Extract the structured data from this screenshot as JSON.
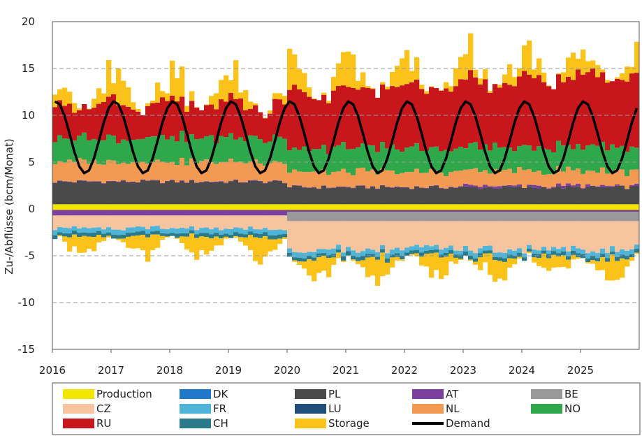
{
  "chart_data": {
    "type": "area",
    "title": "",
    "ylabel": "Zu-/Abflüsse (bcm/Monat)",
    "xlabel": "",
    "x_start": "2016-01",
    "x_end": "2025-12",
    "ylim": [
      -15,
      20
    ],
    "yticks": [
      20,
      15,
      10,
      5,
      0,
      -5,
      -10,
      -15
    ],
    "xticks": [
      "2016",
      "2017",
      "2018",
      "2019",
      "2020",
      "2021",
      "2022",
      "2023",
      "2024",
      "2025"
    ],
    "grid": "dashed horizontal",
    "legend_position": "bottom",
    "legend": [
      {
        "name": "Production",
        "color": "#f2e600",
        "type": "bar"
      },
      {
        "name": "DK",
        "color": "#1f78c8",
        "type": "bar"
      },
      {
        "name": "PL",
        "color": "#4a4a4a",
        "type": "bar"
      },
      {
        "name": "AT",
        "color": "#7b3fa0",
        "type": "bar"
      },
      {
        "name": "BE",
        "color": "#999999",
        "type": "bar"
      },
      {
        "name": "CZ",
        "color": "#f7c4a0",
        "type": "bar"
      },
      {
        "name": "FR",
        "color": "#4fb5d8",
        "type": "bar"
      },
      {
        "name": "LU",
        "color": "#1e4e79",
        "type": "bar"
      },
      {
        "name": "NL",
        "color": "#f29a52",
        "type": "bar"
      },
      {
        "name": "NO",
        "color": "#2ea84a",
        "type": "bar"
      },
      {
        "name": "RU",
        "color": "#c8161d",
        "type": "bar"
      },
      {
        "name": "CH",
        "color": "#2b7a8c",
        "type": "bar"
      },
      {
        "name": "Storage",
        "color": "#fbc21a",
        "type": "bar"
      },
      {
        "name": "Demand",
        "color": "#000000",
        "type": "line"
      }
    ],
    "inflow_series_order": [
      "Production",
      "PL",
      "AT",
      "NL",
      "NO",
      "RU",
      "Storage"
    ],
    "outflow_series_order": [
      "AT",
      "BE",
      "CZ",
      "FR",
      "CH",
      "Storage"
    ],
    "typical_values_bcm_per_month": {
      "demand_winter_peak": 11.5,
      "demand_summer_low": 3.8,
      "inflow_total_peak": 17,
      "outflow_total_low": -8.8
    }
  }
}
